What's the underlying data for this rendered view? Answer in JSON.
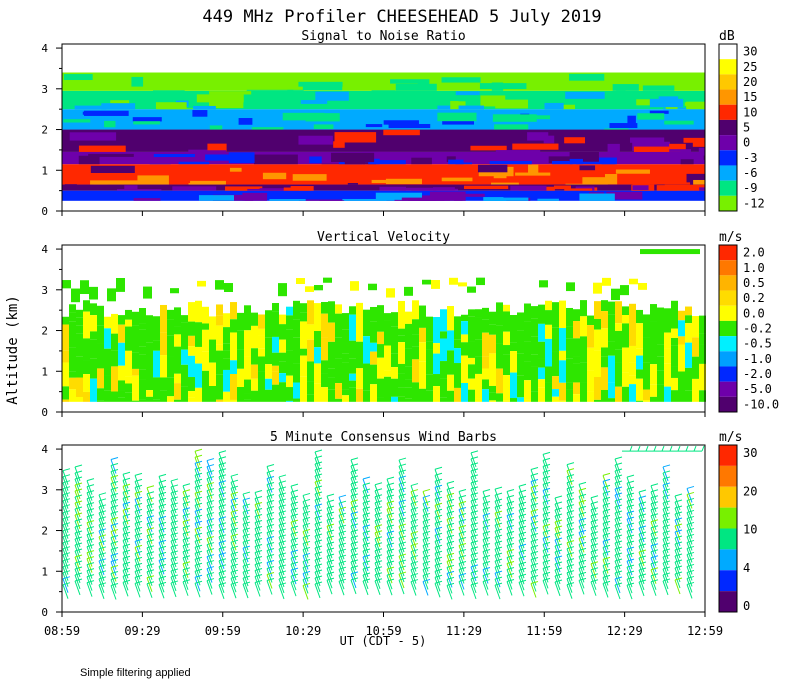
{
  "title": "449 MHz Profiler CHEESEHEAD  5 July 2019",
  "y_axis_label": "Altitude (km)",
  "x_axis_label": "UT  (CDT - 5)",
  "x_ticks": [
    "08:59",
    "09:29",
    "09:59",
    "10:29",
    "10:59",
    "11:29",
    "11:59",
    "12:29",
    "12:59"
  ],
  "footnote": "Simple filtering applied",
  "chart_data": [
    {
      "type": "heatmap",
      "title": "Signal to Noise Ratio",
      "xlabel": "UT  (CDT - 5)",
      "ylabel": "Altitude (km)",
      "y_ticks": [
        "0",
        "1",
        "2",
        "3",
        "4"
      ],
      "ylim": [
        0,
        4.1
      ],
      "colorbar_unit": "dB",
      "colorbar_labels": [
        "30",
        "25",
        "20",
        "15",
        "10",
        "5",
        "0",
        "-3",
        "-6",
        "-9",
        "-12"
      ],
      "colorbar_colors": [
        "#ffffff",
        "#ffff00",
        "#ffc800",
        "#ff9600",
        "#ff2800",
        "#50006e",
        "#6e00aa",
        "#0028ff",
        "#00aaff",
        "#00e682",
        "#78f000"
      ],
      "layers": [
        {
          "from_km": 0.25,
          "to_km": 0.5,
          "level": "-3"
        },
        {
          "from_km": 0.5,
          "to_km": 0.65,
          "level": "5"
        },
        {
          "from_km": 0.65,
          "to_km": 1.15,
          "level": "10"
        },
        {
          "from_km": 1.15,
          "to_km": 1.45,
          "level": "0"
        },
        {
          "from_km": 1.45,
          "to_km": 2.0,
          "level": "5"
        },
        {
          "from_km": 2.0,
          "to_km": 2.5,
          "level": "-6"
        },
        {
          "from_km": 2.5,
          "to_km": 2.95,
          "level": "-9"
        },
        {
          "from_km": 2.95,
          "to_km": 3.4,
          "level": "-12"
        }
      ]
    },
    {
      "type": "heatmap",
      "title": "Vertical Velocity",
      "xlabel": "UT  (CDT - 5)",
      "ylabel": "Altitude (km)",
      "y_ticks": [
        "0",
        "1",
        "2",
        "3",
        "4"
      ],
      "ylim": [
        0,
        4.1
      ],
      "colorbar_unit": "m/s",
      "colorbar_labels": [
        "2.0",
        "1.0",
        "0.5",
        "0.2",
        "0.0",
        "-0.2",
        "-0.5",
        "-1.0",
        "-2.0",
        "-5.0",
        "-10.0"
      ],
      "colorbar_colors": [
        "#ff2800",
        "#ff7800",
        "#ffb400",
        "#ffdc00",
        "#ffff00",
        "#2ee600",
        "#00f0ff",
        "#00a0ff",
        "#0028ff",
        "#6e00aa",
        "#50006e"
      ],
      "dominant_values": [
        "-0.2",
        "0.0",
        "0.2",
        "-0.5"
      ],
      "data_range_km": [
        0.25,
        3.3
      ]
    },
    {
      "type": "scatter",
      "title": "5 Minute Consensus Wind Barbs",
      "xlabel": "UT  (CDT - 5)",
      "ylabel": "Altitude (km)",
      "y_ticks": [
        "0",
        "1",
        "2",
        "3",
        "4"
      ],
      "ylim": [
        0,
        4.1
      ],
      "colorbar_unit": "m/s",
      "colorbar_labels": [
        "30",
        "20",
        "10",
        "4",
        "0"
      ],
      "colorbar_colors": [
        "#ff2800",
        "#ff7800",
        "#ffc800",
        "#78f000",
        "#00e682",
        "#00aaff",
        "#0028ff",
        "#50006e"
      ],
      "typical_speed_ms": 8,
      "data_range_km": [
        0.3,
        3.7
      ]
    }
  ]
}
